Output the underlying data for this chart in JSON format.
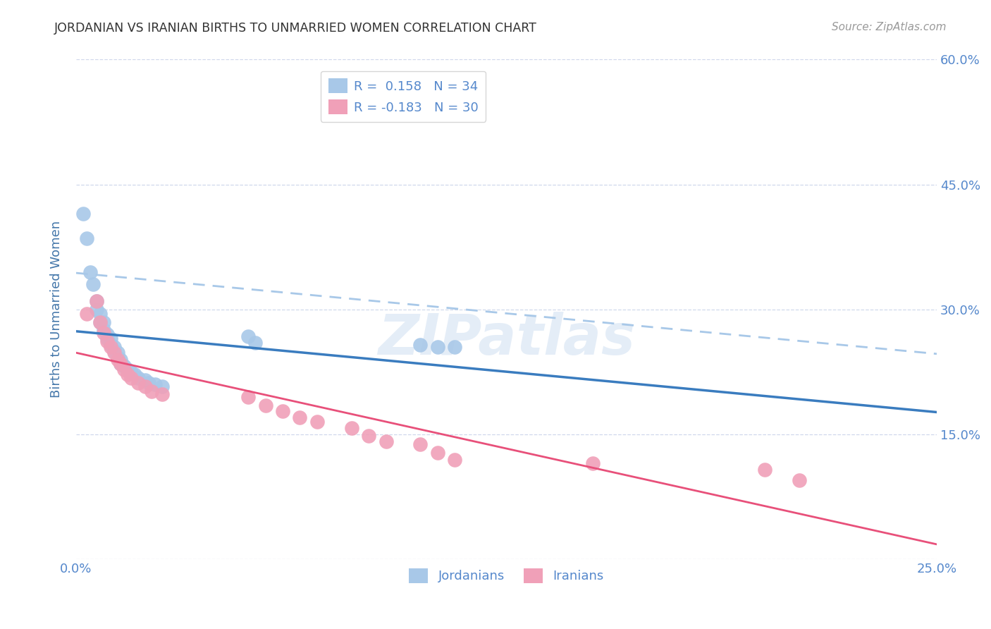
{
  "title": "JORDANIAN VS IRANIAN BIRTHS TO UNMARRIED WOMEN CORRELATION CHART",
  "source": "Source: ZipAtlas.com",
  "ylabel": "Births to Unmarried Women",
  "watermark": "ZIPatlas",
  "x_min": 0.0,
  "x_max": 0.25,
  "y_min": 0.0,
  "y_max": 0.6,
  "x_ticks": [
    0.0,
    0.05,
    0.1,
    0.15,
    0.2,
    0.25
  ],
  "x_tick_labels": [
    "0.0%",
    "",
    "",
    "",
    "",
    "25.0%"
  ],
  "y_ticks": [
    0.0,
    0.15,
    0.3,
    0.45,
    0.6
  ],
  "y_tick_labels_right": [
    "",
    "15.0%",
    "30.0%",
    "45.0%",
    "60.0%"
  ],
  "jordanian_color": "#a8c8e8",
  "iranian_color": "#f0a0b8",
  "trend_jordan_solid_color": "#3a7cbf",
  "trend_jordan_dash_color": "#a8c8e8",
  "trend_iran_color": "#e8507a",
  "legend_r_jordan": "R =  0.158",
  "legend_n_jordan": "N = 34",
  "legend_r_iran": "R = -0.183",
  "legend_n_iran": "N = 30",
  "jordanian_x": [
    0.002,
    0.003,
    0.004,
    0.005,
    0.006,
    0.006,
    0.007,
    0.007,
    0.008,
    0.008,
    0.009,
    0.009,
    0.01,
    0.01,
    0.011,
    0.011,
    0.012,
    0.012,
    0.013,
    0.013,
    0.014,
    0.015,
    0.016,
    0.017,
    0.018,
    0.02,
    0.021,
    0.023,
    0.025,
    0.05,
    0.052,
    0.1,
    0.105,
    0.11
  ],
  "jordanian_y": [
    0.415,
    0.385,
    0.345,
    0.33,
    0.31,
    0.3,
    0.295,
    0.285,
    0.285,
    0.275,
    0.27,
    0.265,
    0.265,
    0.258,
    0.255,
    0.25,
    0.248,
    0.242,
    0.24,
    0.235,
    0.232,
    0.228,
    0.225,
    0.222,
    0.218,
    0.215,
    0.212,
    0.21,
    0.208,
    0.268,
    0.26,
    0.258,
    0.255,
    0.255
  ],
  "iranian_x": [
    0.003,
    0.006,
    0.007,
    0.008,
    0.009,
    0.01,
    0.011,
    0.012,
    0.013,
    0.014,
    0.015,
    0.016,
    0.018,
    0.02,
    0.022,
    0.025,
    0.05,
    0.055,
    0.06,
    0.065,
    0.07,
    0.08,
    0.085,
    0.09,
    0.1,
    0.105,
    0.11,
    0.15,
    0.2,
    0.21
  ],
  "iranian_y": [
    0.295,
    0.31,
    0.285,
    0.272,
    0.262,
    0.255,
    0.248,
    0.24,
    0.235,
    0.228,
    0.222,
    0.218,
    0.212,
    0.208,
    0.202,
    0.198,
    0.195,
    0.185,
    0.178,
    0.17,
    0.165,
    0.158,
    0.148,
    0.142,
    0.138,
    0.128,
    0.12,
    0.115,
    0.108,
    0.095
  ],
  "background_color": "#ffffff",
  "grid_color": "#d0d8ec",
  "title_color": "#333333",
  "source_color": "#999999",
  "axis_label_color": "#4477aa",
  "tick_label_color": "#5588cc"
}
